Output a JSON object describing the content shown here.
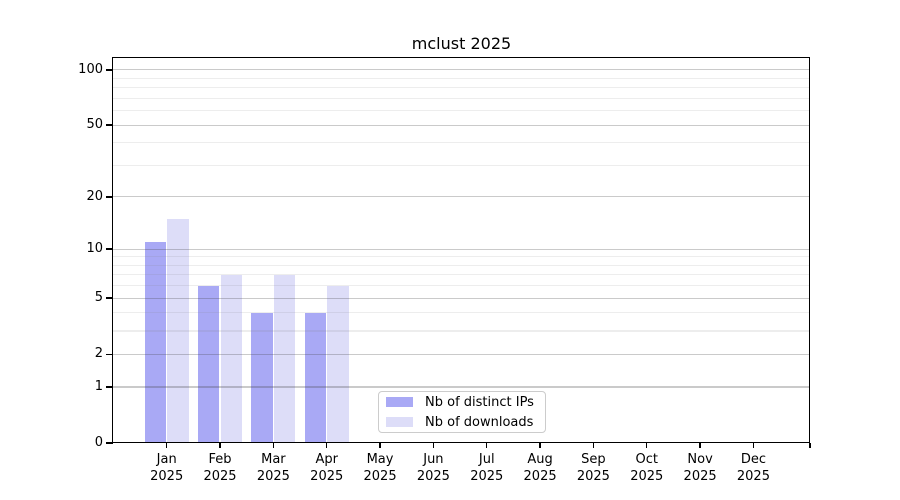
{
  "chart_data": {
    "type": "bar",
    "title": "mclust 2025",
    "y_scale": "log1p",
    "ylim": [
      0,
      116
    ],
    "grid": "horizontal",
    "legend_position": "bottom-center-inside",
    "x_months": [
      "Jan",
      "Feb",
      "Mar",
      "Apr",
      "May",
      "Jun",
      "Jul",
      "Aug",
      "Sep",
      "Oct",
      "Nov",
      "Dec"
    ],
    "x_year": "2025",
    "y_major_ticks": [
      0,
      1,
      2,
      5,
      10,
      20,
      50,
      100
    ],
    "y_minor_gridlines": [
      3,
      4,
      6,
      7,
      8,
      9,
      30,
      40,
      60,
      70,
      80,
      90
    ],
    "series": [
      {
        "name": "Nb of distinct IPs",
        "color": "#a9a9f5",
        "values": [
          11,
          6,
          4,
          4,
          0,
          0,
          0,
          0,
          0,
          0,
          0,
          0
        ]
      },
      {
        "name": "Nb of downloads",
        "color": "#ddddf8",
        "values": [
          15,
          7,
          7,
          6,
          0,
          0,
          0,
          0,
          0,
          0,
          0,
          0
        ]
      }
    ]
  },
  "colors": {
    "background": "#ffffff",
    "text": "#000000",
    "spine": "#000000",
    "major_grid": "rgba(64,64,64,0.28)",
    "minor_grid": "rgba(128,128,128,0.14)",
    "legend_border": "#cccccc"
  }
}
